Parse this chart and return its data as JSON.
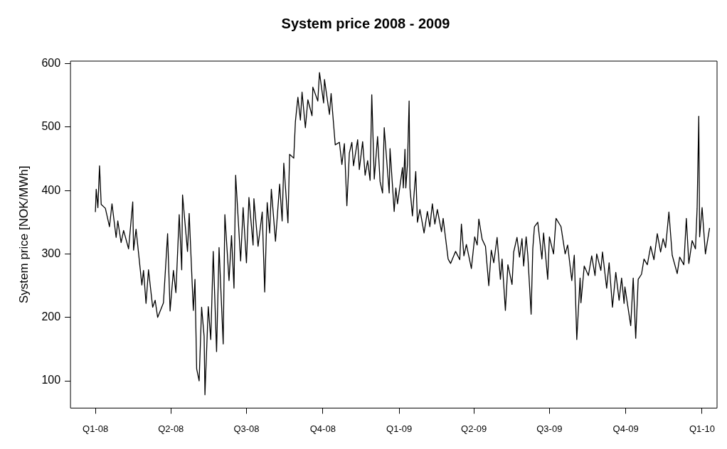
{
  "chart_data": {
    "type": "line",
    "title": "System price 2008 - 2009",
    "ylabel": "System price [NOK/MWh]",
    "x": [
      "2008-01-01",
      "2008-01-02",
      "2008-01-04",
      "2008-01-06",
      "2008-01-08",
      "2008-01-13",
      "2008-01-18",
      "2008-01-21",
      "2008-01-26",
      "2008-01-28",
      "2008-02-01",
      "2008-02-04",
      "2008-02-10",
      "2008-02-15",
      "2008-02-16",
      "2008-02-19",
      "2008-02-26",
      "2008-02-28",
      "2008-03-02",
      "2008-03-05",
      "2008-03-10",
      "2008-03-13",
      "2008-03-16",
      "2008-03-23",
      "2008-03-28",
      "2008-03-31",
      "2008-04-04",
      "2008-04-07",
      "2008-04-11",
      "2008-04-14",
      "2008-04-15",
      "2008-04-21",
      "2008-04-23",
      "2008-04-28",
      "2008-04-30",
      "2008-05-02",
      "2008-05-05",
      "2008-05-08",
      "2008-05-11",
      "2008-05-12",
      "2008-05-16",
      "2008-05-19",
      "2008-05-22",
      "2008-05-26",
      "2008-05-29",
      "2008-06-03",
      "2008-06-05",
      "2008-06-10",
      "2008-06-13",
      "2008-06-16",
      "2008-06-18",
      "2008-06-24",
      "2008-06-27",
      "2008-07-01",
      "2008-07-04",
      "2008-07-09",
      "2008-07-10",
      "2008-07-15",
      "2008-07-20",
      "2008-07-23",
      "2008-07-26",
      "2008-07-29",
      "2008-07-31",
      "2008-08-05",
      "2008-08-10",
      "2008-08-13",
      "2008-08-15",
      "2008-08-20",
      "2008-08-22",
      "2008-08-27",
      "2008-08-29",
      "2008-09-01",
      "2008-09-04",
      "2008-09-06",
      "2008-09-10",
      "2008-09-13",
      "2008-09-18",
      "2008-09-19",
      "2008-09-25",
      "2008-09-27",
      "2008-10-02",
      "2008-10-03",
      "2008-10-09",
      "2008-10-11",
      "2008-10-16",
      "2008-10-21",
      "2008-10-24",
      "2008-10-27",
      "2008-10-30",
      "2008-11-02",
      "2008-11-05",
      "2008-11-07",
      "2008-11-12",
      "2008-11-14",
      "2008-11-18",
      "2008-11-21",
      "2008-11-24",
      "2008-11-27",
      "2008-11-29",
      "2008-12-02",
      "2008-12-06",
      "2008-12-09",
      "2008-12-12",
      "2008-12-14",
      "2008-12-20",
      "2008-12-21",
      "2008-12-26",
      "2008-12-28",
      "2008-12-30",
      "2009-01-05",
      "2009-01-06",
      "2009-01-08",
      "2009-01-09",
      "2009-01-11",
      "2009-01-13",
      "2009-01-14",
      "2009-01-17",
      "2009-01-21",
      "2009-01-23",
      "2009-01-26",
      "2009-01-31",
      "2009-02-04",
      "2009-02-07",
      "2009-02-10",
      "2009-02-13",
      "2009-02-16",
      "2009-02-21",
      "2009-02-23",
      "2009-03-01",
      "2009-03-04",
      "2009-03-10",
      "2009-03-15",
      "2009-03-17",
      "2009-03-20",
      "2009-03-23",
      "2009-03-29",
      "2009-04-02",
      "2009-04-05",
      "2009-04-07",
      "2009-04-11",
      "2009-04-15",
      "2009-04-19",
      "2009-04-22",
      "2009-04-25",
      "2009-04-29",
      "2009-05-03",
      "2009-05-05",
      "2009-05-09",
      "2009-05-12",
      "2009-05-17",
      "2009-05-19",
      "2009-05-23",
      "2009-05-26",
      "2009-05-29",
      "2009-05-31",
      "2009-06-03",
      "2009-06-05",
      "2009-06-09",
      "2009-06-11",
      "2009-06-13",
      "2009-06-17",
      "2009-06-22",
      "2009-06-24",
      "2009-06-29",
      "2009-07-01",
      "2009-07-06",
      "2009-07-09",
      "2009-07-15",
      "2009-07-20",
      "2009-07-23",
      "2009-07-28",
      "2009-07-31",
      "2009-08-03",
      "2009-08-07",
      "2009-08-08",
      "2009-08-12",
      "2009-08-17",
      "2009-08-21",
      "2009-08-25",
      "2009-08-27",
      "2009-09-01",
      "2009-09-03",
      "2009-09-08",
      "2009-09-11",
      "2009-09-15",
      "2009-09-19",
      "2009-09-23",
      "2009-09-26",
      "2009-09-29",
      "2009-09-30",
      "2009-10-07",
      "2009-10-10",
      "2009-10-13",
      "2009-10-16",
      "2009-10-20",
      "2009-10-23",
      "2009-10-27",
      "2009-10-31",
      "2009-11-04",
      "2009-11-08",
      "2009-11-12",
      "2009-11-15",
      "2009-11-18",
      "2009-11-22",
      "2009-11-26",
      "2009-12-02",
      "2009-12-05",
      "2009-12-10",
      "2009-12-13",
      "2009-12-16",
      "2009-12-20",
      "2009-12-24",
      "2009-12-26",
      "2009-12-28",
      "2009-12-29",
      "2010-01-01",
      "2010-01-05",
      "2010-01-10"
    ],
    "series": [
      {
        "color": "#000000",
        "values": [
          366,
          402,
          373,
          439,
          378,
          372,
          343,
          379,
          326,
          352,
          318,
          337,
          308,
          382,
          306,
          339,
          251,
          274,
          222,
          275,
          216,
          227,
          200,
          223,
          332,
          210,
          274,
          239,
          362,
          275,
          393,
          304,
          364,
          211,
          260,
          119,
          100,
          216,
          170,
          78,
          217,
          165,
          304,
          146,
          310,
          158,
          362,
          258,
          329,
          246,
          424,
          289,
          373,
          286,
          389,
          314,
          387,
          312,
          366,
          240,
          381,
          333,
          402,
          320,
          410,
          352,
          443,
          349,
          457,
          451,
          509,
          547,
          511,
          555,
          499,
          543,
          518,
          563,
          541,
          586,
          538,
          575,
          520,
          553,
          472,
          476,
          441,
          474,
          376,
          459,
          476,
          439,
          480,
          433,
          477,
          424,
          447,
          416,
          551,
          418,
          485,
          414,
          396,
          499,
          396,
          466,
          367,
          404,
          379,
          436,
          404,
          465,
          404,
          441,
          541,
          404,
          360,
          430,
          350,
          370,
          333,
          367,
          343,
          379,
          347,
          370,
          335,
          356,
          292,
          285,
          304,
          291,
          347,
          297,
          315,
          277,
          327,
          314,
          355,
          323,
          312,
          250,
          306,
          286,
          326,
          260,
          292,
          211,
          283,
          252,
          303,
          326,
          295,
          324,
          281,
          327,
          298,
          205,
          308,
          343,
          350,
          292,
          333,
          260,
          327,
          300,
          356,
          343,
          300,
          314,
          258,
          298,
          165,
          262,
          223,
          281,
          266,
          297,
          266,
          300,
          274,
          303,
          246,
          286,
          216,
          271,
          227,
          262,
          222,
          248,
          187,
          262,
          167,
          260,
          268,
          292,
          283,
          312,
          291,
          332,
          303,
          324,
          310,
          366,
          298,
          269,
          295,
          283,
          356,
          285,
          321,
          308,
          372,
          517,
          327,
          373,
          300,
          341
        ]
      }
    ],
    "xlim": [
      "2007-12-02",
      "2010-01-19"
    ],
    "ylim": [
      57,
      604
    ],
    "xticks": [
      {
        "value": "2008-01-01",
        "label": "Q1-08"
      },
      {
        "value": "2008-04-01",
        "label": "Q2-08"
      },
      {
        "value": "2008-07-01",
        "label": "Q3-08"
      },
      {
        "value": "2008-10-01",
        "label": "Q4-08"
      },
      {
        "value": "2009-01-01",
        "label": "Q1-09"
      },
      {
        "value": "2009-04-01",
        "label": "Q2-09"
      },
      {
        "value": "2009-07-01",
        "label": "Q3-09"
      },
      {
        "value": "2009-10-01",
        "label": "Q4-09"
      },
      {
        "value": "2010-01-01",
        "label": "Q1-10"
      }
    ],
    "yticks": [
      100,
      200,
      300,
      400,
      500,
      600
    ],
    "grid": false,
    "legend": false,
    "marker": "none",
    "line_style": "solid"
  }
}
